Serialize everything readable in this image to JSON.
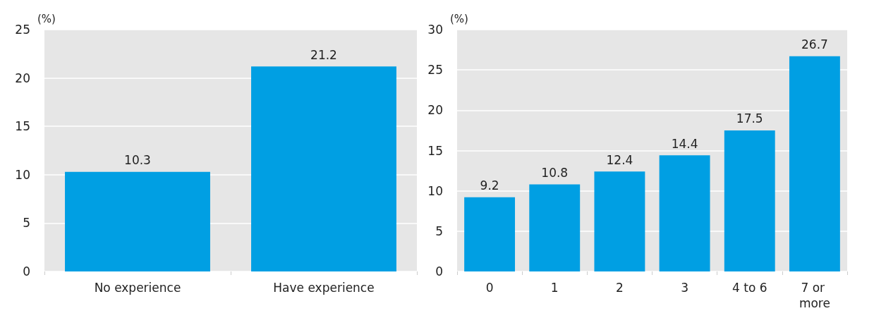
{
  "chart_data": [
    {
      "type": "bar",
      "ylabel": "(%)",
      "categories": [
        "No experience",
        "Have experience"
      ],
      "values": [
        10.3,
        21.2
      ],
      "color": "#009fe3",
      "ylim": [
        0,
        25
      ],
      "yticks": [
        0,
        5,
        10,
        15,
        20,
        25
      ],
      "grid": "y",
      "data_labels": true
    },
    {
      "type": "bar",
      "ylabel": "(%)",
      "categories": [
        "0",
        "1",
        "2",
        "3",
        "4 to 6",
        "7 or more"
      ],
      "values": [
        9.2,
        10.8,
        12.4,
        14.4,
        17.5,
        26.7
      ],
      "color": "#009fe3",
      "ylim": [
        0,
        30
      ],
      "yticks": [
        0,
        5,
        10,
        15,
        20,
        25,
        30
      ],
      "grid": "y",
      "data_labels": true
    }
  ]
}
